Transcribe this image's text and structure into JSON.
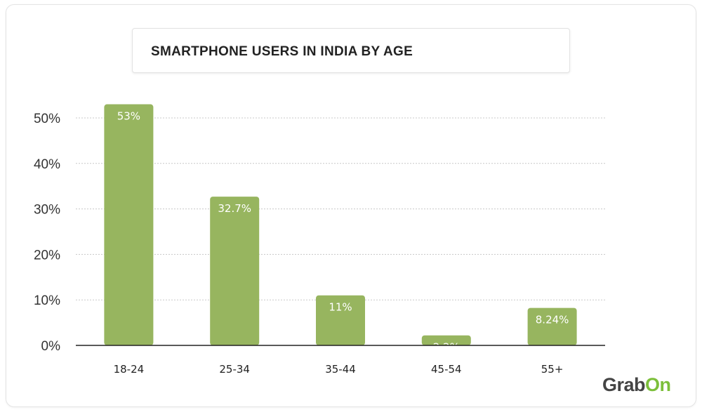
{
  "chart_data": {
    "type": "bar",
    "title": "SMARTPHONE USERS IN INDIA BY AGE",
    "categories": [
      "18-24",
      "25-34",
      "35-44",
      "45-54",
      "55+"
    ],
    "values": [
      53,
      32.7,
      11,
      2.2,
      8.24
    ],
    "data_labels": [
      "53%",
      "32.7%",
      "11%",
      "2.2%",
      "8.24%"
    ],
    "xlabel": "",
    "ylabel": "",
    "ylim": [
      0,
      50
    ],
    "yticks": [
      0,
      10,
      20,
      30,
      40,
      50
    ],
    "ytick_labels": [
      "0%",
      "10%",
      "20%",
      "30%",
      "40%",
      "50%"
    ],
    "grid": true,
    "bar_color": "#97b55f"
  },
  "logo": {
    "text": "GrabOn",
    "part1": "Grab",
    "part2": "On",
    "color": "#7cbf3a"
  }
}
